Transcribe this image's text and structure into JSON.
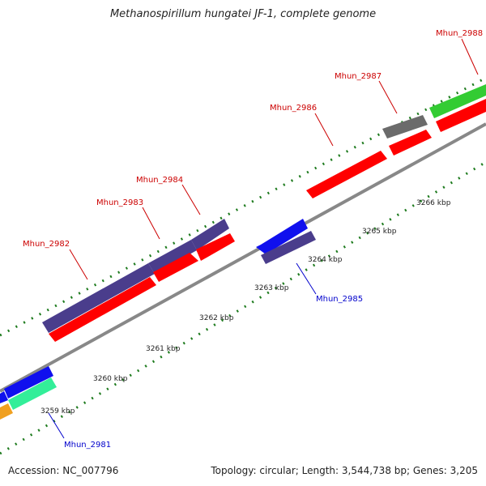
{
  "title": "Methanospirillum hungatei JF-1, complete genome",
  "accession_text": "Accession: NC_007796",
  "summary_text": "Topology: circular; Length: 3,544,738 bp; Genes: 3,205",
  "colors": {
    "backbone": "#888888",
    "tick": "#1e7b1e",
    "label_red": "#cc0000",
    "label_blue": "#0000cc",
    "purple": "#4a3d8c",
    "red": "#ff0000",
    "blue": "#1010ee",
    "gray": "#6b6b6b",
    "green": "#33cc33",
    "teal": "#33ee99",
    "orange": "#f0a020"
  },
  "scale_labels": [
    "3259 kbp",
    "3260 kbp",
    "3261 kbp",
    "3262 kbp",
    "3263 kbp",
    "3264 kbp",
    "3265 kbp",
    "3266 kbp"
  ],
  "gene_labels": {
    "Mhun_2981": "Mhun_2981",
    "Mhun_2982": "Mhun_2982",
    "Mhun_2983": "Mhun_2983",
    "Mhun_2984": "Mhun_2984",
    "Mhun_2985": "Mhun_2985",
    "Mhun_2986": "Mhun_2986",
    "Mhun_2987": "Mhun_2987",
    "Mhun_2988": "Mhun_2988"
  }
}
